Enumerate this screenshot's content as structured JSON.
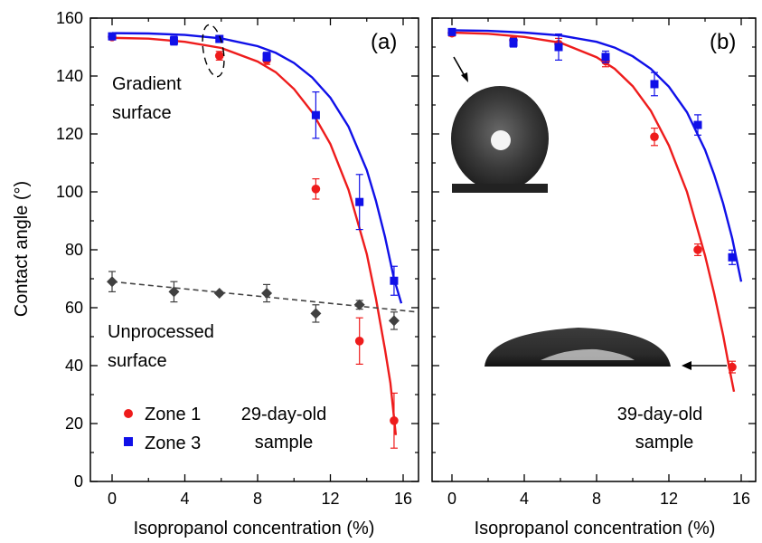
{
  "figure": {
    "ylabel": "Contact angle (°)",
    "xlabel": "Isopropanol concentration (%)",
    "y_ticks": [
      "0",
      "20",
      "40",
      "60",
      "80",
      "100",
      "120",
      "140",
      "160"
    ],
    "x_ticks": [
      "0",
      "4",
      "8",
      "12",
      "16"
    ],
    "legend": {
      "zone1": "Zone 1",
      "zone3": "Zone 3"
    },
    "colors": {
      "zone1": "#ee1c1c",
      "zone3": "#1010e8",
      "unprocessed": "#404040"
    }
  },
  "panel_a": {
    "label": "(a)",
    "annotation_gradient": [
      "Gradient",
      "surface"
    ],
    "annotation_unprocessed": [
      "Unprocessed",
      "surface"
    ],
    "sample": [
      "29-day-old",
      "sample"
    ]
  },
  "panel_b": {
    "label": "(b)",
    "sample": [
      "39-day-old",
      "sample"
    ],
    "droplet_images": [
      "droplet-high-angle",
      "droplet-low-angle"
    ]
  },
  "chart_data": [
    {
      "type": "scatter",
      "panel": "(a)",
      "xlabel": "Isopropanol concentration (%)",
      "ylabel": "Contact angle (°)",
      "xlim": [
        -1,
        17
      ],
      "ylim": [
        0,
        160
      ],
      "series": [
        {
          "name": "Zone 1",
          "marker": "circle",
          "x": [
            0,
            3.4,
            5.9,
            8.5,
            11.2,
            13.6,
            15.5
          ],
          "y": [
            153.5,
            152.2,
            147,
            145.5,
            101,
            48.5,
            21
          ],
          "err": [
            1,
            1,
            1.5,
            1.5,
            3.5,
            8,
            9.5
          ],
          "fit": {
            "x": [
              0,
              2,
              4,
              6,
              8,
              9,
              10,
              11,
              12,
              13,
              14,
              14.5,
              15,
              15.3,
              15.6
            ],
            "y": [
              153.2,
              152.9,
              151.8,
              149.7,
              145,
              141.3,
              135.5,
              127.5,
              116.5,
              100.7,
              78.5,
              63.3,
              45.6,
              34,
              16
            ]
          }
        },
        {
          "name": "Zone 3",
          "marker": "square",
          "x": [
            0,
            3.4,
            5.9,
            8.5,
            11.2,
            13.6,
            15.5
          ],
          "y": [
            153.7,
            152.2,
            152.8,
            146.7,
            126.5,
            96.5,
            69.3
          ],
          "err": [
            1,
            1.5,
            1,
            1.5,
            8,
            9.5,
            5
          ],
          "fit": {
            "x": [
              0,
              2,
              4,
              6,
              8,
              9,
              10,
              11,
              12,
              13,
              14,
              14.5,
              15,
              15.5,
              15.9
            ],
            "y": [
              154.8,
              154.7,
              154.2,
              153,
              150.3,
              148,
              144.5,
              139.5,
              132.5,
              122.5,
              107.5,
              97,
              84.5,
              70,
              61.5
            ]
          }
        },
        {
          "name": "",
          "marker": "diamond",
          "x": [
            0,
            3.4,
            5.9,
            8.5,
            11.2,
            13.6,
            15.5
          ],
          "y": [
            69,
            65.5,
            65,
            65,
            58,
            61,
            55.5
          ],
          "err": [
            3.5,
            3.5,
            0.5,
            3,
            3,
            1.5,
            3
          ],
          "fit": {
            "x": [
              0,
              16.8
            ],
            "y": [
              69,
              58.5
            ],
            "dashed": true
          }
        }
      ]
    },
    {
      "type": "scatter",
      "panel": "(b)",
      "xlabel": "Isopropanol concentration (%)",
      "xlim": [
        -1,
        17
      ],
      "ylim": [
        0,
        160
      ],
      "series": [
        {
          "name": "Zone 1",
          "marker": "circle",
          "x": [
            0,
            3.4,
            5.9,
            8.5,
            11.2,
            13.6,
            15.5
          ],
          "y": [
            154.8,
            152.3,
            151,
            145.2,
            119,
            80,
            39.5
          ],
          "err": [
            1,
            1,
            2,
            2,
            3,
            2,
            2
          ],
          "fit": {
            "x": [
              0,
              2,
              4,
              6,
              8,
              9,
              10,
              11,
              12,
              13,
              14,
              14.5,
              15,
              15.3,
              15.6
            ],
            "y": [
              155,
              154.6,
              153.5,
              151.5,
              146.5,
              142.5,
              136.5,
              128,
              116,
              100,
              78,
              65,
              50.5,
              40.5,
              31
            ]
          }
        },
        {
          "name": "Zone 3",
          "marker": "square",
          "x": [
            0,
            3.4,
            5.9,
            8.5,
            11.2,
            13.6,
            15.5
          ],
          "y": [
            155.2,
            151.5,
            150,
            146.6,
            137.2,
            123.1,
            77.4
          ],
          "err": [
            1,
            1.5,
            4.5,
            2,
            4,
            3.5,
            2.5
          ],
          "fit": {
            "x": [
              0,
              2,
              4,
              6,
              8,
              9,
              10,
              11,
              12,
              13,
              14,
              14.5,
              15,
              15.5,
              16
            ],
            "y": [
              155.8,
              155.6,
              155,
              154,
              151.8,
              149.8,
              146.8,
              142.5,
              136.3,
              127.5,
              114.5,
              106,
              96,
              84,
              69
            ]
          }
        }
      ]
    }
  ]
}
